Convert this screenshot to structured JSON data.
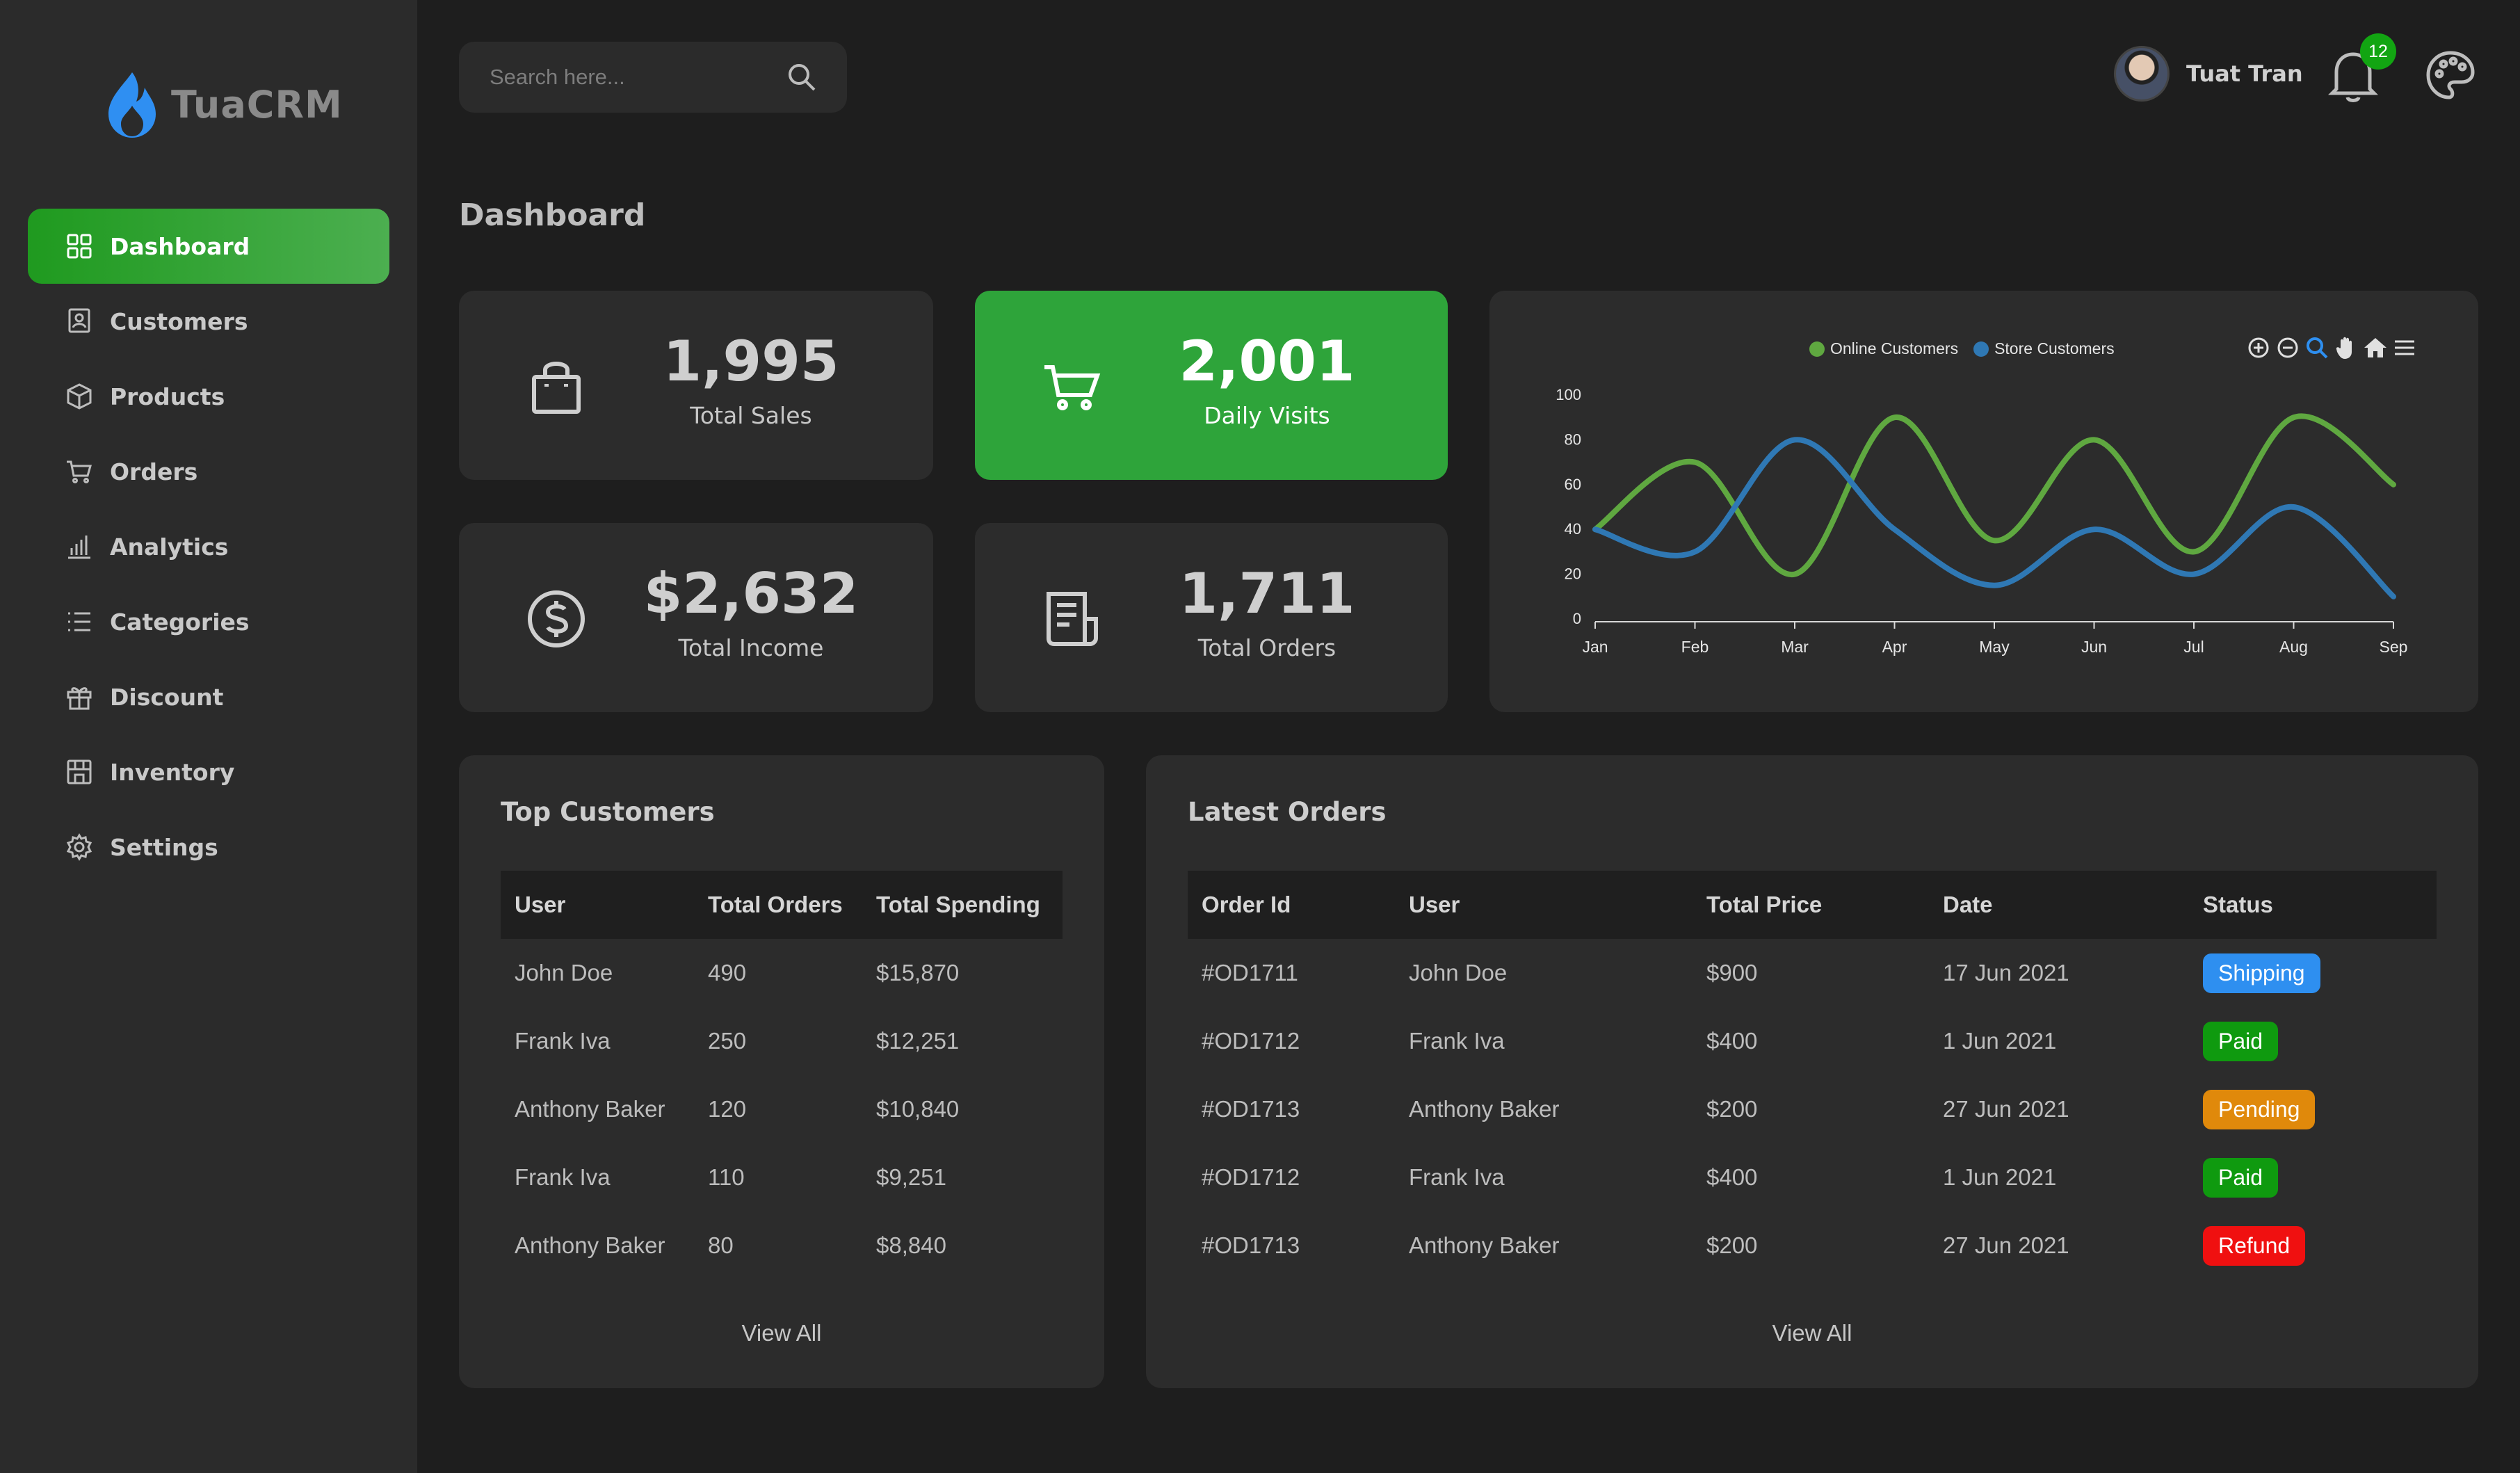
{
  "app": {
    "brand": "TuaCRM",
    "page_title": "Dashboard"
  },
  "sidebar": {
    "items": [
      {
        "label": "Dashboard",
        "icon": "grid-icon",
        "active": true
      },
      {
        "label": "Customers",
        "icon": "contact-icon",
        "active": false
      },
      {
        "label": "Products",
        "icon": "box-icon",
        "active": false
      },
      {
        "label": "Orders",
        "icon": "cart-icon",
        "active": false
      },
      {
        "label": "Analytics",
        "icon": "bar-chart-icon",
        "active": false
      },
      {
        "label": "Categories",
        "icon": "list-icon",
        "active": false
      },
      {
        "label": "Discount",
        "icon": "gift-icon",
        "active": false
      },
      {
        "label": "Inventory",
        "icon": "store-icon",
        "active": false
      },
      {
        "label": "Settings",
        "icon": "gear-icon",
        "active": false
      }
    ]
  },
  "header": {
    "search_placeholder": "Search here...",
    "user_name": "Tuat Tran",
    "notification_count": "12"
  },
  "stats": [
    {
      "value": "1,995",
      "label": "Total Sales",
      "icon": "shopping-bag-icon"
    },
    {
      "value": "2,001",
      "label": "Daily Visits",
      "icon": "cart-icon"
    },
    {
      "value": "$2,632",
      "label": "Total Income",
      "icon": "dollar-circle-icon"
    },
    {
      "value": "1,711",
      "label": "Total Orders",
      "icon": "receipt-icon"
    }
  ],
  "chart_data": {
    "type": "line",
    "x": [
      "Jan",
      "Feb",
      "Mar",
      "Apr",
      "May",
      "Jun",
      "Jul",
      "Aug",
      "Sep"
    ],
    "ylim": [
      0,
      100
    ],
    "yticks": [
      0,
      20,
      40,
      60,
      80,
      100
    ],
    "series": [
      {
        "name": "Online Customers",
        "color": "#5fa840",
        "values": [
          40,
          70,
          20,
          90,
          35,
          80,
          30,
          90,
          60
        ]
      },
      {
        "name": "Store Customers",
        "color": "#2f78b4",
        "values": [
          40,
          30,
          80,
          40,
          15,
          40,
          20,
          50,
          10
        ]
      }
    ],
    "legend": "top-center",
    "grid": false
  },
  "colors": {
    "accent": "#2ea43a",
    "shipping": "#2e8ff0",
    "paid": "#0f9a0f",
    "pending": "#e0890b",
    "refund": "#f01010"
  },
  "top_customers": {
    "title": "Top Customers",
    "columns": [
      "User",
      "Total Orders",
      "Total Spending"
    ],
    "rows": [
      [
        "John Doe",
        "490",
        "$15,870"
      ],
      [
        "Frank Iva",
        "250",
        "$12,251"
      ],
      [
        "Anthony Baker",
        "120",
        "$10,840"
      ],
      [
        "Frank Iva",
        "110",
        "$9,251"
      ],
      [
        "Anthony Baker",
        "80",
        "$8,840"
      ]
    ],
    "view_all": "View All"
  },
  "latest_orders": {
    "title": "Latest Orders",
    "columns": [
      "Order Id",
      "User",
      "Total Price",
      "Date",
      "Status"
    ],
    "rows": [
      [
        "#OD1711",
        "John Doe",
        "$900",
        "17 Jun 2021",
        "Shipping"
      ],
      [
        "#OD1712",
        "Frank Iva",
        "$400",
        "1 Jun 2021",
        "Paid"
      ],
      [
        "#OD1713",
        "Anthony Baker",
        "$200",
        "27 Jun 2021",
        "Pending"
      ],
      [
        "#OD1712",
        "Frank Iva",
        "$400",
        "1 Jun 2021",
        "Paid"
      ],
      [
        "#OD1713",
        "Anthony Baker",
        "$200",
        "27 Jun 2021",
        "Refund"
      ]
    ],
    "view_all": "View All"
  }
}
